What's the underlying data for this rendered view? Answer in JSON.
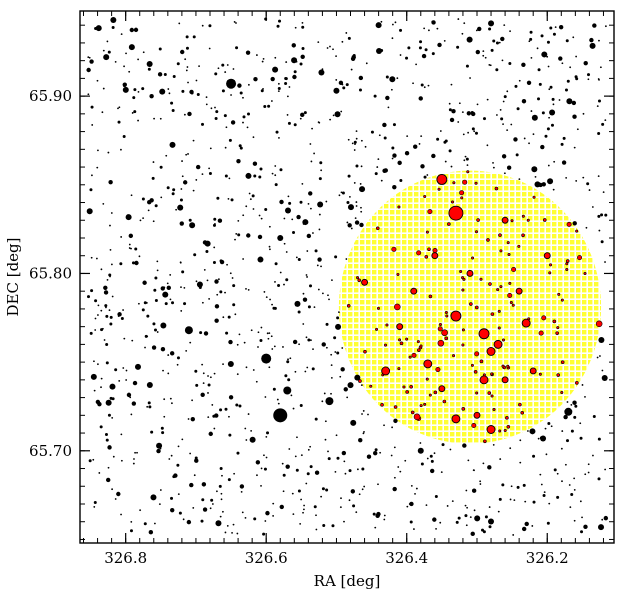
{
  "chart_data": {
    "type": "scatter",
    "xlabel": "RA [deg]",
    "ylabel": "DEC [deg]",
    "xlim": [
      326.865,
      326.105
    ],
    "ylim": [
      65.648,
      65.948
    ],
    "x_inverted": true,
    "x_ticks": [
      326.8,
      326.6,
      326.4,
      326.2
    ],
    "x_tick_labels": [
      "326.8",
      "326.6",
      "326.4",
      "326.2"
    ],
    "y_ticks": [
      65.7,
      65.8,
      65.9
    ],
    "y_tick_labels": [
      "65.70",
      "65.80",
      "65.90"
    ],
    "grid": false,
    "highlight_region": {
      "shape": "circle",
      "center_ra": 326.31,
      "center_dec": 65.781,
      "radius_dec": 0.077,
      "color": "#ffff33",
      "style": "dotted-grid"
    },
    "bright_stars": [
      {
        "ra": 326.65,
        "dec": 65.907,
        "size": 5
      },
      {
        "ra": 326.58,
        "dec": 65.72,
        "size": 7
      },
      {
        "ra": 326.6,
        "dec": 65.752,
        "size": 5
      },
      {
        "ra": 326.57,
        "dec": 65.734,
        "size": 4
      },
      {
        "ra": 326.51,
        "dec": 65.728,
        "size": 4
      },
      {
        "ra": 326.48,
        "dec": 65.737,
        "size": 3
      },
      {
        "ra": 326.71,
        "dec": 65.768,
        "size": 4
      },
      {
        "ra": 326.58,
        "dec": 65.82,
        "size": 3
      },
      {
        "ra": 326.44,
        "dec": 65.94,
        "size": 3
      },
      {
        "ra": 326.28,
        "dec": 65.941,
        "size": 3
      },
      {
        "ra": 326.17,
        "dec": 65.722,
        "size": 4
      },
      {
        "ra": 326.38,
        "dec": 65.7,
        "size": 3
      }
    ],
    "red_members": [
      {
        "ra": 326.33,
        "dec": 65.834,
        "size": 7
      },
      {
        "ra": 326.35,
        "dec": 65.853,
        "size": 5
      },
      {
        "ra": 326.33,
        "dec": 65.776,
        "size": 5
      },
      {
        "ra": 326.29,
        "dec": 65.766,
        "size": 5
      },
      {
        "ra": 326.28,
        "dec": 65.756,
        "size": 4
      },
      {
        "ra": 326.27,
        "dec": 65.76,
        "size": 4
      },
      {
        "ra": 326.37,
        "dec": 65.749,
        "size": 4
      },
      {
        "ra": 326.29,
        "dec": 65.74,
        "size": 4
      },
      {
        "ra": 326.23,
        "dec": 65.772,
        "size": 4
      },
      {
        "ra": 326.43,
        "dec": 65.745,
        "size": 4
      },
      {
        "ra": 326.33,
        "dec": 65.718,
        "size": 4
      },
      {
        "ra": 326.28,
        "dec": 65.712,
        "size": 4
      },
      {
        "ra": 326.26,
        "dec": 65.83,
        "size": 3
      },
      {
        "ra": 326.36,
        "dec": 65.81,
        "size": 3
      },
      {
        "ra": 326.24,
        "dec": 65.79,
        "size": 3
      },
      {
        "ra": 326.31,
        "dec": 65.8,
        "size": 3
      },
      {
        "ra": 326.39,
        "dec": 65.79,
        "size": 3
      },
      {
        "ra": 326.22,
        "dec": 65.745,
        "size": 3
      },
      {
        "ra": 326.41,
        "dec": 65.77,
        "size": 3
      },
      {
        "ra": 326.26,
        "dec": 65.74,
        "size": 3
      },
      {
        "ra": 326.3,
        "dec": 65.72,
        "size": 3
      },
      {
        "ra": 326.35,
        "dec": 65.735,
        "size": 3
      },
      {
        "ra": 326.2,
        "dec": 65.81,
        "size": 3
      },
      {
        "ra": 326.46,
        "dec": 65.795,
        "size": 3
      }
    ]
  }
}
